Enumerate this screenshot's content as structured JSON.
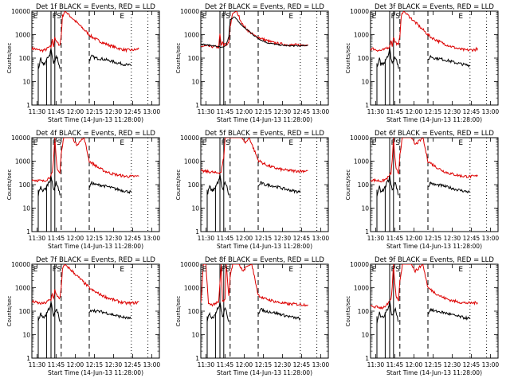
{
  "chart_data": [
    {
      "type": "line",
      "title": "Det 1f BLACK = Events, RED = LLD",
      "markers": [
        "E",
        "F",
        "S",
        "E"
      ],
      "red": "A",
      "black": "A"
    },
    {
      "type": "line",
      "title": "Det 2f BLACK = Events, RED = LLD",
      "markers": [
        "E",
        "F",
        "S",
        "E"
      ],
      "red": "B",
      "black": "B"
    },
    {
      "type": "line",
      "title": "Det 3f BLACK = Events, RED = LLD",
      "markers": [
        "E",
        "F",
        "S",
        "E"
      ],
      "red": "A",
      "black": "A"
    },
    {
      "type": "line",
      "title": "Det 4f BLACK = Events, RED = LLD",
      "markers": [
        "E",
        "F",
        "S",
        "E"
      ],
      "red": "C",
      "black": "A"
    },
    {
      "type": "line",
      "title": "Det 5f BLACK = Events, RED = LLD",
      "markers": [
        "E",
        "F",
        "S",
        "E"
      ],
      "red": "D",
      "black": "A"
    },
    {
      "type": "line",
      "title": "Det 6f BLACK = Events, RED = LLD",
      "markers": [
        "E",
        "F",
        "S",
        "E"
      ],
      "red": "C",
      "black": "A"
    },
    {
      "type": "line",
      "title": "Det 7f BLACK = Events, RED = LLD",
      "markers": [
        "E",
        "F",
        "S",
        "E"
      ],
      "red": "A",
      "black": "A"
    },
    {
      "type": "line",
      "title": "Det 8f BLACK = Events, RED = LLD",
      "markers": [
        "E",
        "F",
        "S",
        "E"
      ],
      "red": "E",
      "black": "A"
    },
    {
      "type": "line",
      "title": "Det 9f BLACK = Events, RED = LLD",
      "markers": [
        "E",
        "F",
        "S",
        "E"
      ],
      "red": "C",
      "black": "A"
    }
  ],
  "shared": {
    "xlabel": "Start Time (14-Jun-13 11:28:00)",
    "ylabel": "Counts/sec",
    "xticks": [
      "11:30",
      "11:45",
      "12:00",
      "12:15",
      "12:30",
      "12:45",
      "13:00"
    ],
    "xlim_minutes": [
      -2,
      98
    ],
    "yscale": "log",
    "ylim": [
      1,
      10000
    ],
    "yticks": [
      "1",
      "10",
      "100",
      "1000",
      "10000"
    ],
    "lines_solid_min": [
      13,
      16
    ],
    "lines_dashed_min": [
      21,
      43
    ],
    "lines_dotted_min": [
      76,
      89
    ],
    "colors": {
      "events": "#000000",
      "lld": "#dd0000",
      "background": "#ffffff"
    }
  },
  "series_profiles": {
    "A": [
      [
        -2,
        250
      ],
      [
        0,
        250
      ],
      [
        3,
        220
      ],
      [
        6,
        210
      ],
      [
        9,
        230
      ],
      [
        11,
        280
      ],
      [
        13,
        300
      ],
      [
        14,
        600
      ],
      [
        15,
        330
      ],
      [
        16,
        800
      ],
      [
        17,
        500
      ],
      [
        18,
        450
      ],
      [
        20,
        350
      ],
      [
        21,
        900
      ],
      [
        22,
        6000
      ],
      [
        24,
        10000
      ],
      [
        43,
        1000
      ],
      [
        45,
        800
      ],
      [
        48,
        650
      ],
      [
        52,
        500
      ],
      [
        56,
        400
      ],
      [
        60,
        330
      ],
      [
        64,
        280
      ],
      [
        68,
        240
      ],
      [
        72,
        220
      ],
      [
        76,
        220
      ],
      [
        80,
        230
      ],
      [
        82,
        260
      ]
    ],
    "B": [
      [
        -2,
        320
      ],
      [
        3,
        320
      ],
      [
        7,
        310
      ],
      [
        10,
        300
      ],
      [
        12,
        290
      ],
      [
        13,
        1000
      ],
      [
        14,
        320
      ],
      [
        15,
        500
      ],
      [
        16,
        300
      ],
      [
        17,
        450
      ],
      [
        18,
        350
      ],
      [
        20,
        500
      ],
      [
        21,
        2000
      ],
      [
        23,
        8000
      ],
      [
        26,
        10000
      ],
      [
        31,
        2500
      ],
      [
        35,
        1500
      ],
      [
        40,
        900
      ],
      [
        45,
        700
      ],
      [
        50,
        550
      ],
      [
        55,
        450
      ],
      [
        60,
        400
      ],
      [
        65,
        380
      ],
      [
        70,
        360
      ],
      [
        76,
        360
      ],
      [
        82,
        380
      ]
    ],
    "C": [
      [
        -2,
        160
      ],
      [
        3,
        150
      ],
      [
        7,
        140
      ],
      [
        10,
        170
      ],
      [
        12,
        210
      ],
      [
        14,
        300
      ],
      [
        15,
        1000
      ],
      [
        16,
        10000
      ],
      [
        17,
        1500
      ],
      [
        18,
        450
      ],
      [
        20,
        300
      ],
      [
        21,
        2000
      ],
      [
        23,
        10000
      ],
      [
        30,
        10000
      ],
      [
        33,
        5000
      ],
      [
        36,
        7000
      ],
      [
        39,
        10000
      ],
      [
        43,
        1000
      ],
      [
        47,
        700
      ],
      [
        51,
        500
      ],
      [
        55,
        380
      ],
      [
        60,
        300
      ],
      [
        65,
        260
      ],
      [
        70,
        230
      ],
      [
        76,
        220
      ],
      [
        82,
        230
      ]
    ],
    "D": [
      [
        -2,
        380
      ],
      [
        3,
        360
      ],
      [
        7,
        340
      ],
      [
        10,
        310
      ],
      [
        12,
        330
      ],
      [
        14,
        350
      ],
      [
        16,
        1500
      ],
      [
        17,
        10000
      ],
      [
        20,
        10000
      ],
      [
        22,
        10000
      ],
      [
        30,
        10000
      ],
      [
        33,
        6000
      ],
      [
        36,
        10000
      ],
      [
        43,
        1100
      ],
      [
        47,
        800
      ],
      [
        52,
        600
      ],
      [
        57,
        500
      ],
      [
        62,
        430
      ],
      [
        67,
        400
      ],
      [
        72,
        380
      ],
      [
        78,
        380
      ],
      [
        82,
        400
      ]
    ],
    "E": [
      [
        -2,
        200
      ],
      [
        0,
        10000
      ],
      [
        2,
        10000
      ],
      [
        4,
        200
      ],
      [
        7,
        190
      ],
      [
        10,
        220
      ],
      [
        12,
        230
      ],
      [
        14,
        10000
      ],
      [
        15,
        250
      ],
      [
        17,
        300
      ],
      [
        18,
        10000
      ],
      [
        20,
        400
      ],
      [
        21,
        3000
      ],
      [
        23,
        10000
      ],
      [
        28,
        10000
      ],
      [
        31,
        5000
      ],
      [
        34,
        8000
      ],
      [
        38,
        10000
      ],
      [
        43,
        500
      ],
      [
        47,
        350
      ],
      [
        52,
        300
      ],
      [
        57,
        250
      ],
      [
        62,
        220
      ],
      [
        67,
        200
      ],
      [
        72,
        200
      ],
      [
        78,
        190
      ],
      [
        82,
        190
      ]
    ],
    "blackA": [
      [
        3,
        35
      ],
      [
        5,
        90
      ],
      [
        6,
        55
      ],
      [
        8,
        60
      ],
      [
        9,
        70
      ],
      [
        11,
        120
      ],
      [
        12,
        140
      ],
      [
        13,
        250
      ],
      [
        14,
        110
      ],
      [
        15,
        60
      ],
      [
        16,
        80
      ],
      [
        17,
        120
      ],
      [
        18,
        100
      ],
      [
        19,
        60
      ],
      [
        20,
        35
      ]
    ],
    "blackB": [
      [
        -2,
        400
      ],
      [
        3,
        360
      ],
      [
        7,
        340
      ],
      [
        10,
        320
      ],
      [
        12,
        300
      ],
      [
        14,
        280
      ],
      [
        16,
        290
      ],
      [
        18,
        380
      ],
      [
        20,
        800
      ],
      [
        21,
        4000
      ],
      [
        24,
        6000
      ],
      [
        30,
        2500
      ],
      [
        35,
        1500
      ],
      [
        40,
        900
      ],
      [
        45,
        600
      ],
      [
        50,
        450
      ],
      [
        55,
        400
      ],
      [
        60,
        360
      ],
      [
        65,
        340
      ],
      [
        70,
        330
      ],
      [
        76,
        330
      ],
      [
        82,
        350
      ]
    ],
    "blackTail": [
      [
        43,
        80
      ],
      [
        45,
        120
      ],
      [
        48,
        100
      ],
      [
        52,
        95
      ],
      [
        56,
        85
      ],
      [
        60,
        75
      ],
      [
        64,
        65
      ],
      [
        68,
        58
      ],
      [
        72,
        52
      ],
      [
        76,
        48
      ]
    ]
  }
}
